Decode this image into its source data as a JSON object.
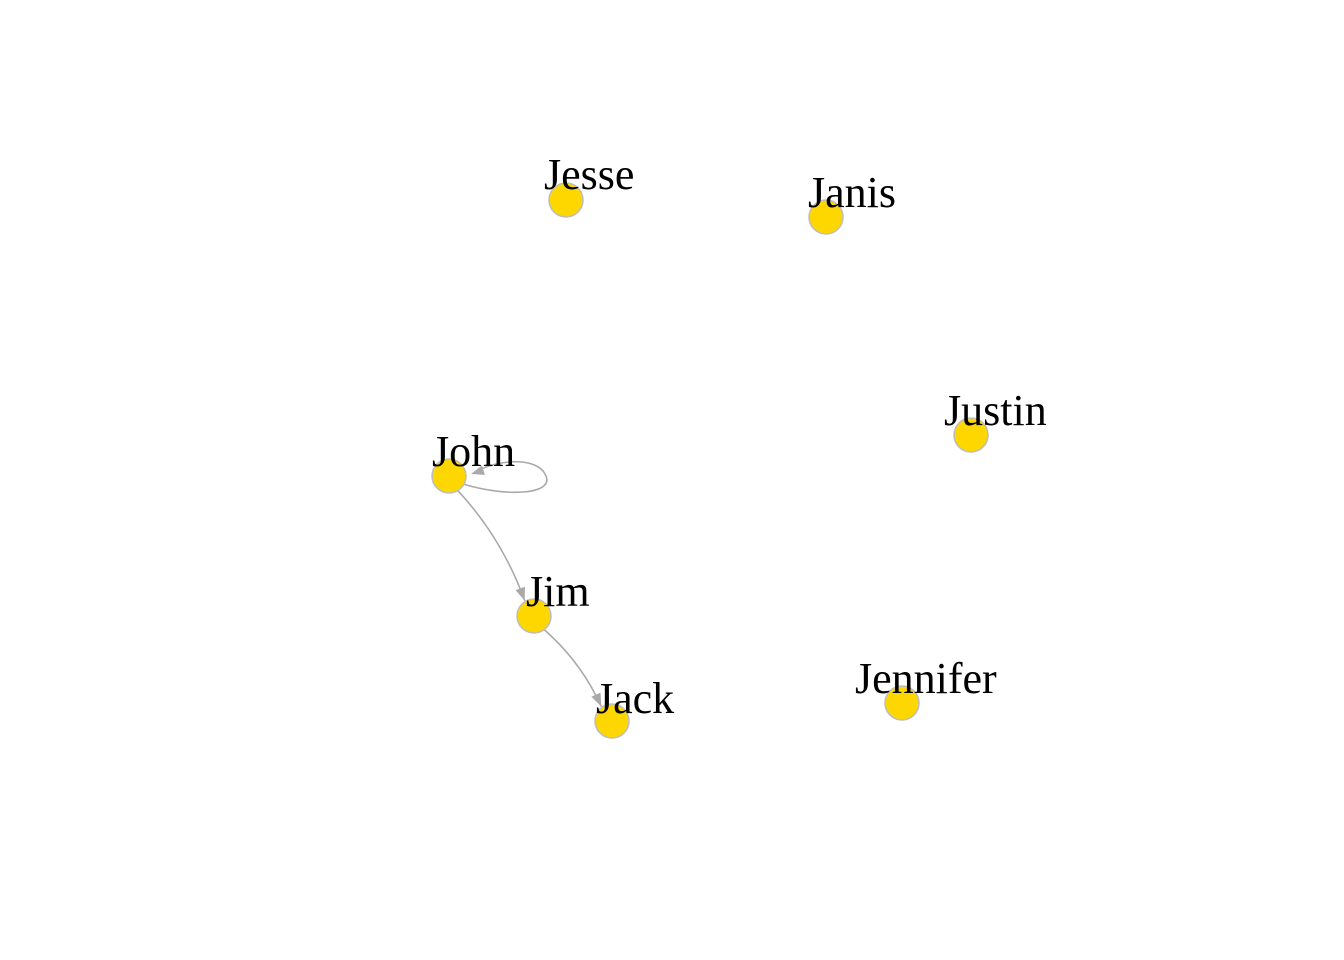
{
  "graph": {
    "nodes": [
      {
        "id": "jesse",
        "label": "Jesse"
      },
      {
        "id": "janis",
        "label": "Janis"
      },
      {
        "id": "justin",
        "label": "Justin"
      },
      {
        "id": "john",
        "label": "John"
      },
      {
        "id": "jim",
        "label": "Jim"
      },
      {
        "id": "jack",
        "label": "Jack"
      },
      {
        "id": "jennifer",
        "label": "Jennifer"
      }
    ],
    "edges": [
      {
        "from": "john",
        "to": "john"
      },
      {
        "from": "john",
        "to": "jim"
      },
      {
        "from": "jim",
        "to": "jack"
      }
    ],
    "directed": true,
    "node_color": "#FFD700",
    "edge_color": "#A9A9A9"
  }
}
